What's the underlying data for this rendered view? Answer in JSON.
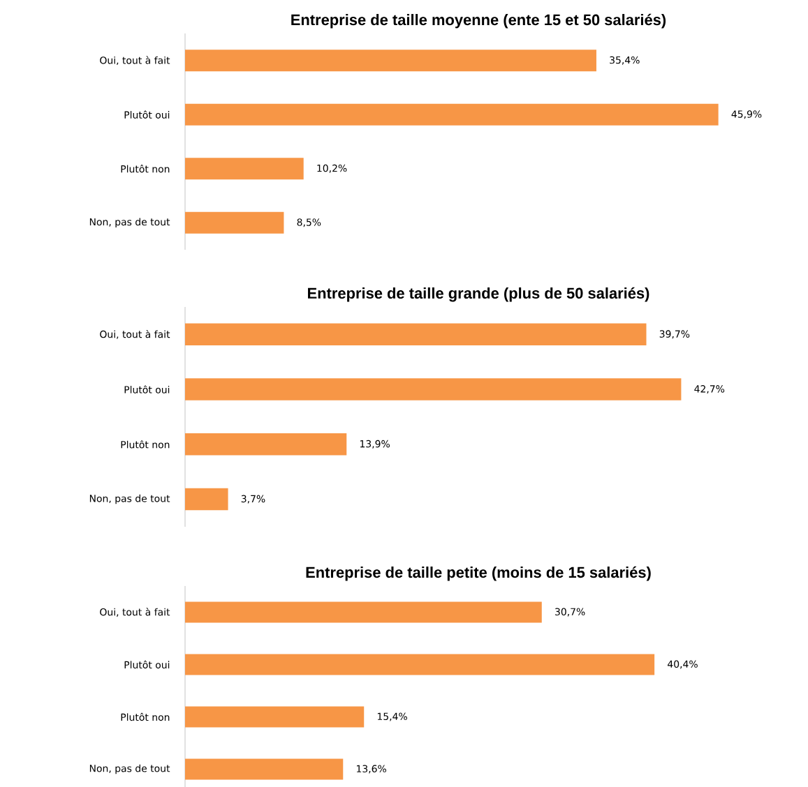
{
  "chart_data": [
    {
      "type": "bar",
      "orientation": "horizontal",
      "title": "Entreprise de taille moyenne (ente 15 et 50 salariés)",
      "categories": [
        "Oui, tout à fait",
        "Plutôt oui",
        "Plutôt non",
        "Non, pas de tout"
      ],
      "values": [
        35.4,
        45.9,
        10.2,
        8.5
      ],
      "value_labels": [
        "35,4%",
        "45,9%",
        "10,2%",
        "8,5%"
      ],
      "color": "#f79646"
    },
    {
      "type": "bar",
      "orientation": "horizontal",
      "title": "Entreprise de taille grande (plus de 50 salariés)",
      "categories": [
        "Oui, tout à fait",
        "Plutôt oui",
        "Plutôt non",
        "Non, pas de tout"
      ],
      "values": [
        39.7,
        42.7,
        13.9,
        3.7
      ],
      "value_labels": [
        "39,7%",
        "42,7%",
        "13,9%",
        "3,7%"
      ],
      "color": "#f79646"
    },
    {
      "type": "bar",
      "orientation": "horizontal",
      "title": "Entreprise de taille petite (moins de 15 salariés)",
      "categories": [
        "Oui, tout à fait",
        "Plutôt oui",
        "Plutôt non",
        "Non, pas de tout"
      ],
      "values": [
        30.7,
        40.4,
        15.4,
        13.6
      ],
      "value_labels": [
        "30,7%",
        "40,4%",
        "15,4%",
        "13,6%"
      ],
      "color": "#f79646"
    }
  ]
}
